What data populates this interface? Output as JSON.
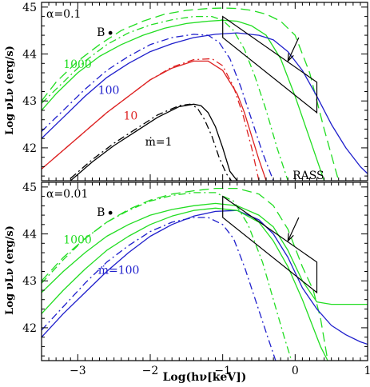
{
  "chart_data": [
    {
      "type": "line",
      "panel": "top",
      "alpha_label": "α=0.1",
      "point_label": "B",
      "rass_label": "RASS",
      "ylabel": "Log νLν (erg/s)",
      "xlim": [
        -3.5,
        1.0
      ],
      "ylim": [
        41.3,
        45.1
      ],
      "yticks": [
        "42",
        "43",
        "44",
        "45"
      ],
      "series_labels": [
        {
          "text": "1000",
          "color": "#22dd22",
          "x": -3.2,
          "y": 43.7
        },
        {
          "text": "100",
          "color": "#1f1fcc",
          "x": -2.72,
          "y": 43.15
        },
        {
          "text": "10",
          "color": "#dd2222",
          "x": -2.37,
          "y": 42.6
        },
        {
          "text": "ṁ=1",
          "color": "#000000",
          "x": -2.07,
          "y": 42.05
        }
      ],
      "point": [
        -2.55,
        44.45
      ],
      "series": [
        {
          "mdot": "1000",
          "style": "solid",
          "color": "#22dd22",
          "x": [
            -3.5,
            -3.3,
            -3.0,
            -2.7,
            -2.4,
            -2.1,
            -1.8,
            -1.5,
            -1.2,
            -1.0,
            -0.8,
            -0.6,
            -0.4,
            -0.2,
            0.0,
            0.2,
            0.4
          ],
          "y": [
            42.8,
            43.15,
            43.6,
            43.95,
            44.2,
            44.4,
            44.55,
            44.65,
            44.7,
            44.72,
            44.7,
            44.6,
            44.4,
            43.9,
            43.1,
            42.2,
            41.3
          ]
        },
        {
          "mdot": "1000",
          "style": "dashed",
          "color": "#22dd22",
          "x": [
            -3.5,
            -3.3,
            -3.0,
            -2.7,
            -2.4,
            -2.1,
            -1.8,
            -1.5,
            -1.2,
            -1.0,
            -0.8,
            -0.6,
            -0.4,
            -0.2,
            0.0,
            0.2,
            0.4,
            0.6
          ],
          "y": [
            43.0,
            43.4,
            43.85,
            44.2,
            44.5,
            44.7,
            44.85,
            44.93,
            44.97,
            44.98,
            44.97,
            44.93,
            44.85,
            44.7,
            44.4,
            43.6,
            42.4,
            41.3
          ]
        },
        {
          "mdot": "1000",
          "style": "dash-dot",
          "color": "#22dd22",
          "x": [
            -3.5,
            -3.2,
            -2.9,
            -2.6,
            -2.3,
            -2.0,
            -1.7,
            -1.4,
            -1.15,
            -1.0,
            -0.85,
            -0.7,
            -0.55,
            -0.4,
            -0.25,
            -0.1
          ],
          "y": [
            42.95,
            43.4,
            43.85,
            44.2,
            44.45,
            44.62,
            44.73,
            44.8,
            44.8,
            44.72,
            44.5,
            44.1,
            43.5,
            42.8,
            42.0,
            41.3
          ]
        },
        {
          "mdot": "100",
          "style": "solid",
          "color": "#1f1fcc",
          "x": [
            -3.5,
            -3.2,
            -2.9,
            -2.6,
            -2.3,
            -2.0,
            -1.7,
            -1.4,
            -1.1,
            -0.8,
            -0.5,
            -0.3,
            -0.1,
            0.1,
            0.3,
            0.5,
            0.7,
            0.9,
            1.0
          ],
          "y": [
            42.2,
            42.65,
            43.1,
            43.5,
            43.8,
            44.05,
            44.22,
            44.35,
            44.42,
            44.45,
            44.4,
            44.3,
            44.05,
            43.65,
            43.1,
            42.5,
            42.0,
            41.6,
            41.45
          ]
        },
        {
          "mdot": "100",
          "style": "dash-dot",
          "color": "#1f1fcc",
          "x": [
            -3.5,
            -3.2,
            -2.9,
            -2.6,
            -2.3,
            -2.0,
            -1.7,
            -1.4,
            -1.2,
            -1.05,
            -0.9,
            -0.75,
            -0.6,
            -0.45,
            -0.3
          ],
          "y": [
            42.35,
            42.8,
            43.25,
            43.65,
            43.95,
            44.2,
            44.35,
            44.42,
            44.4,
            44.25,
            43.9,
            43.3,
            42.6,
            41.9,
            41.3
          ]
        },
        {
          "mdot": "10",
          "style": "solid",
          "color": "#dd2222",
          "x": [
            -3.5,
            -3.2,
            -2.9,
            -2.6,
            -2.3,
            -2.0,
            -1.7,
            -1.4,
            -1.2,
            -1.0,
            -0.8,
            -0.7,
            -0.6,
            -0.5,
            -0.4
          ],
          "y": [
            41.55,
            41.95,
            42.35,
            42.75,
            43.1,
            43.45,
            43.7,
            43.85,
            43.85,
            43.65,
            43.15,
            42.75,
            42.25,
            41.75,
            41.3
          ]
        },
        {
          "mdot": "10",
          "style": "dash-dot",
          "color": "#dd2222",
          "x": [
            -3.5,
            -3.2,
            -2.9,
            -2.6,
            -2.3,
            -2.0,
            -1.7,
            -1.4,
            -1.15,
            -1.0,
            -0.85,
            -0.72,
            -0.6,
            -0.5
          ],
          "y": [
            41.55,
            41.95,
            42.35,
            42.75,
            43.1,
            43.45,
            43.72,
            43.88,
            43.9,
            43.75,
            43.3,
            42.7,
            42.0,
            41.3
          ]
        },
        {
          "mdot": "1",
          "style": "solid",
          "color": "#000000",
          "x": [
            -3.1,
            -2.8,
            -2.5,
            -2.2,
            -1.9,
            -1.6,
            -1.4,
            -1.3,
            -1.2,
            -1.1,
            -1.0,
            -0.9,
            -0.8
          ],
          "y": [
            41.3,
            41.7,
            42.05,
            42.35,
            42.65,
            42.88,
            42.93,
            42.9,
            42.75,
            42.45,
            42.0,
            41.5,
            41.3
          ]
        },
        {
          "mdot": "1",
          "style": "dash-dot",
          "color": "#000000",
          "x": [
            -3.1,
            -2.8,
            -2.5,
            -2.2,
            -1.9,
            -1.6,
            -1.45,
            -1.35,
            -1.25,
            -1.15,
            -1.05,
            -0.95,
            -0.88
          ],
          "y": [
            41.35,
            41.75,
            42.1,
            42.4,
            42.7,
            42.9,
            42.93,
            42.85,
            42.6,
            42.25,
            41.8,
            41.45,
            41.3
          ]
        }
      ],
      "rass_polygon": {
        "x": [
          -1.0,
          -1.0,
          0.3,
          0.3
        ],
        "y": [
          44.8,
          44.35,
          42.75,
          43.4
        ]
      },
      "rass_arrow": {
        "from": [
          0.05,
          44.35
        ],
        "to": [
          -0.1,
          43.85
        ]
      }
    },
    {
      "type": "line",
      "panel": "bottom",
      "alpha_label": "α=0.01",
      "point_label": "B",
      "rass_label": "RASS",
      "xlabel": "Log(hν[keV])",
      "ylabel": "Log νLν (erg/s)",
      "xlim": [
        -3.5,
        1.0
      ],
      "ylim": [
        41.3,
        45.1
      ],
      "xticks": [
        "−3",
        "−2",
        "−1",
        "0",
        "1"
      ],
      "yticks": [
        "42",
        "43",
        "44",
        "45"
      ],
      "series_labels": [
        {
          "text": "1000",
          "color": "#22dd22",
          "x": -3.2,
          "y": 43.8
        },
        {
          "text": "ṁ=100",
          "color": "#1f1fcc",
          "x": -2.72,
          "y": 43.15
        }
      ],
      "point": [
        -2.55,
        44.45
      ],
      "series": [
        {
          "mdot": "1000",
          "style": "solid",
          "color": "#22dd22",
          "x": [
            -3.5,
            -3.2,
            -2.9,
            -2.6,
            -2.3,
            -2.0,
            -1.7,
            -1.4,
            -1.1,
            -0.8,
            -0.5,
            -0.3,
            -0.1,
            0.1,
            0.3,
            0.5,
            0.7,
            0.9,
            1.0
          ],
          "y": [
            42.75,
            43.2,
            43.6,
            43.95,
            44.2,
            44.4,
            44.52,
            44.6,
            44.65,
            44.6,
            44.4,
            44.15,
            43.65,
            43.0,
            42.55,
            42.5,
            42.5,
            42.5,
            42.5
          ]
        },
        {
          "mdot": "1000",
          "style": "dashed",
          "color": "#22dd22",
          "x": [
            -3.5,
            -3.2,
            -2.9,
            -2.6,
            -2.3,
            -2.0,
            -1.7,
            -1.4,
            -1.1,
            -0.8,
            -0.5,
            -0.3,
            -0.1,
            0.1,
            0.25,
            0.35,
            0.45
          ],
          "y": [
            43.0,
            43.5,
            43.9,
            44.25,
            44.52,
            44.72,
            44.85,
            44.92,
            44.97,
            44.97,
            44.85,
            44.6,
            44.1,
            43.3,
            42.8,
            42.2,
            41.3
          ]
        },
        {
          "mdot": "1000",
          "style": "dash-dot",
          "color": "#22dd22",
          "x": [
            -3.5,
            -3.2,
            -2.9,
            -2.6,
            -2.3,
            -2.0,
            -1.7,
            -1.4,
            -1.1,
            -0.85,
            -0.65,
            -0.45,
            -0.3,
            -0.15,
            -0.05
          ],
          "y": [
            42.95,
            43.45,
            43.9,
            44.25,
            44.5,
            44.7,
            44.82,
            44.88,
            44.88,
            44.7,
            44.2,
            43.4,
            42.6,
            41.8,
            41.3
          ]
        },
        {
          "mdot": "100",
          "style": "solid",
          "color": "#1f1fcc",
          "x": [
            -3.5,
            -3.2,
            -2.9,
            -2.6,
            -2.3,
            -2.0,
            -1.7,
            -1.4,
            -1.1,
            -0.8,
            -0.5,
            -0.3,
            -0.1,
            0.1,
            0.3,
            0.5,
            0.7,
            0.9,
            1.0
          ],
          "y": [
            41.8,
            42.3,
            42.75,
            43.2,
            43.6,
            43.95,
            44.2,
            44.38,
            44.48,
            44.5,
            44.3,
            44.0,
            43.5,
            42.85,
            42.4,
            42.05,
            41.85,
            41.7,
            41.65
          ]
        },
        {
          "mdot": "100",
          "style": "dash-dot",
          "color": "#1f1fcc",
          "x": [
            -3.5,
            -3.2,
            -2.9,
            -2.6,
            -2.3,
            -2.0,
            -1.7,
            -1.4,
            -1.2,
            -1.0,
            -0.85,
            -0.7,
            -0.55,
            -0.4,
            -0.27
          ],
          "y": [
            41.95,
            42.45,
            42.95,
            43.4,
            43.75,
            44.05,
            44.25,
            44.35,
            44.35,
            44.2,
            43.9,
            43.3,
            42.6,
            41.9,
            41.3
          ]
        },
        {
          "mdot": "100",
          "style": "solid2",
          "color": "#22dd22",
          "x": [
            -3.5,
            -3.2,
            -2.9,
            -2.6,
            -2.3,
            -2.0,
            -1.7,
            -1.4,
            -1.1,
            -0.8,
            -0.5,
            -0.3,
            -0.1,
            0.1,
            0.25,
            0.35,
            0.45
          ],
          "y": [
            42.3,
            42.8,
            43.25,
            43.65,
            43.95,
            44.2,
            44.38,
            44.5,
            44.55,
            44.5,
            44.25,
            43.85,
            43.3,
            42.6,
            42.0,
            41.6,
            41.3
          ]
        }
      ],
      "rass_polygon": {
        "x": [
          -1.0,
          -1.0,
          0.3,
          0.3
        ],
        "y": [
          44.8,
          44.35,
          42.75,
          43.4
        ]
      },
      "rass_arrow": {
        "from": [
          0.05,
          44.35
        ],
        "to": [
          -0.1,
          43.85
        ]
      }
    }
  ]
}
